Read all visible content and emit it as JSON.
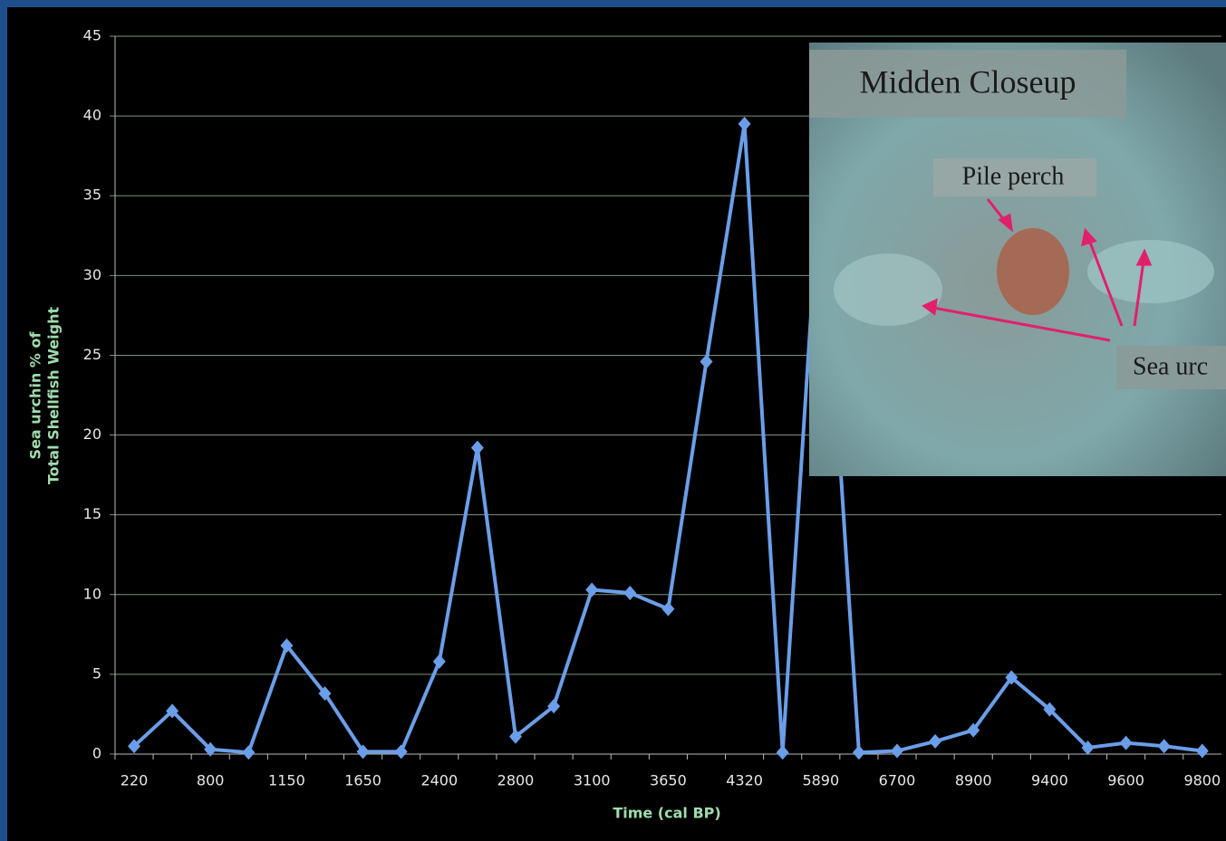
{
  "chart_data": {
    "type": "line",
    "x_label": "Time (cal BP)",
    "y_label": [
      "Sea urchin % of",
      "Total Shellfish Weight"
    ],
    "categories": [
      "220",
      null,
      "800",
      null,
      "1150",
      null,
      "1650",
      null,
      "2400",
      null,
      "2800",
      null,
      "3100",
      null,
      "3650",
      null,
      "4320",
      null,
      "5890",
      null,
      "6700",
      null,
      "8900",
      null,
      "9400",
      null,
      "9600",
      null,
      "9800"
    ],
    "values": [
      0.5,
      2.7,
      0.3,
      0.1,
      6.8,
      3.8,
      0.15,
      0.15,
      5.8,
      19.2,
      1.1,
      3.0,
      10.3,
      10.1,
      9.1,
      24.6,
      39.5,
      0.1,
      37,
      0.1,
      0.2,
      0.8,
      1.5,
      4.8,
      2.8,
      0.4,
      0.7,
      0.5,
      0.2
    ],
    "color": "#6b9ee8",
    "ylim": [
      0,
      45
    ],
    "yticks": [
      0,
      5,
      10,
      15,
      20,
      25,
      30,
      35,
      40,
      45
    ],
    "grid": true,
    "photo": {
      "title": "Midden Closeup",
      "labels": [
        "Pile perch",
        "Sea urc"
      ]
    }
  }
}
